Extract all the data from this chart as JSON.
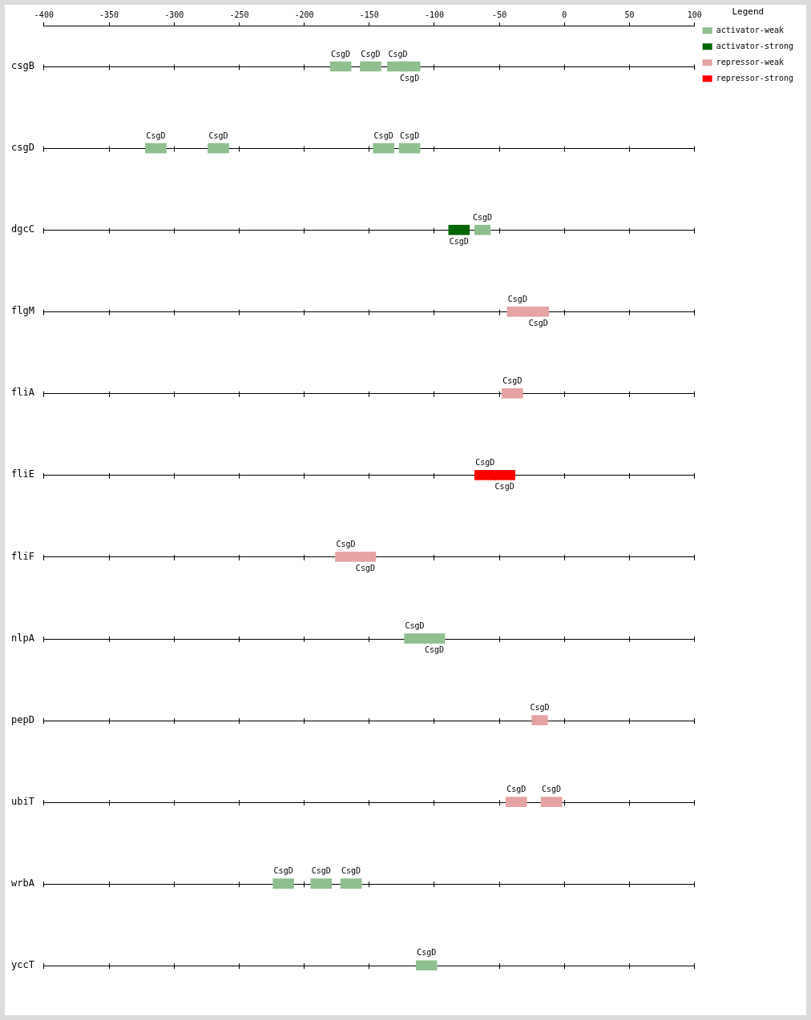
{
  "chart_data": {
    "type": "bar",
    "orientation": "horizontal",
    "grid": true,
    "legend": "top right",
    "legend_title": "Legend",
    "categories": [
      "csgB",
      "csgD",
      "dgcC",
      "flgM",
      "fliA",
      "fliE",
      "fliF",
      "nlpA",
      "pepD",
      "ubiT",
      "wrbA",
      "yccT"
    ],
    "xlim": [
      -400,
      100
    ],
    "xticks": [
      -400,
      -350,
      -300,
      -250,
      -200,
      -150,
      -100,
      -50,
      0,
      50,
      100
    ],
    "series": [
      {
        "name": "activator-weak",
        "color": "#8fbf8f",
        "base": [
          -180,
          -322,
          -69,
          null,
          null,
          null,
          null,
          -123,
          null,
          null,
          -224,
          -114
        ],
        "values": [
          16,
          16,
          12,
          null,
          null,
          null,
          null,
          16,
          null,
          null,
          16,
          16
        ]
      },
      {
        "color": "#8fbf8f",
        "base": [
          -157,
          -274,
          null,
          null,
          null,
          null,
          null,
          -108,
          null,
          null,
          -195,
          null
        ],
        "values": [
          16,
          16,
          null,
          null,
          null,
          null,
          null,
          16,
          null,
          null,
          16,
          null
        ]
      },
      {
        "color": "#8fbf8f",
        "base": [
          -136,
          -147,
          null,
          null,
          null,
          null,
          null,
          null,
          null,
          null,
          -172,
          null
        ],
        "values": [
          16,
          16,
          null,
          null,
          null,
          null,
          null,
          null,
          null,
          null,
          16,
          null
        ]
      },
      {
        "color": "#8fbf8f",
        "base": [
          -127,
          -127,
          null,
          null,
          null,
          null,
          null,
          null,
          null,
          null,
          null,
          null
        ],
        "values": [
          16,
          16,
          null,
          null,
          null,
          null,
          null,
          null,
          null,
          null,
          null,
          null
        ]
      },
      {
        "name": "activator-strong",
        "color": "#006400",
        "base": [
          null,
          null,
          -89,
          null,
          null,
          null,
          null,
          null,
          null,
          null,
          null,
          null
        ],
        "values": [
          null,
          null,
          16,
          null,
          null,
          null,
          null,
          null,
          null,
          null,
          null,
          null
        ]
      },
      {
        "name": "repressor-weak",
        "color": "#e5a3a3",
        "base": [
          null,
          null,
          null,
          -44,
          -48,
          null,
          -176,
          null,
          -25,
          -45,
          null,
          null
        ],
        "values": [
          null,
          null,
          null,
          16,
          16,
          null,
          16,
          null,
          12,
          16,
          null,
          null
        ]
      },
      {
        "color": "#e5a3a3",
        "base": [
          null,
          null,
          null,
          -28,
          null,
          null,
          -161,
          null,
          null,
          -18,
          null,
          null
        ],
        "values": [
          null,
          null,
          null,
          16,
          null,
          null,
          16,
          null,
          null,
          16,
          null,
          null
        ]
      },
      {
        "name": "repressor-strong",
        "color": "#ff0000",
        "base": [
          null,
          null,
          null,
          null,
          null,
          -69,
          null,
          null,
          null,
          null,
          null,
          null
        ],
        "values": [
          null,
          null,
          null,
          null,
          null,
          16,
          null,
          null,
          null,
          null,
          null,
          null
        ]
      },
      {
        "color": "#ff0000",
        "base": [
          null,
          null,
          null,
          null,
          null,
          -54,
          null,
          null,
          null,
          null,
          null,
          null
        ],
        "values": [
          null,
          null,
          null,
          null,
          null,
          16,
          null,
          null,
          null,
          null,
          null,
          null
        ]
      }
    ],
    "annotations": [
      "CsgD",
      "CsgD",
      "CsgD",
      "CsgD",
      "CsgD",
      "CsgD",
      "CsgD",
      "CsgD",
      "CsgD",
      "CsgD",
      "CsgD",
      "CsgD",
      "CsgD",
      "CsgD",
      "CsgD",
      "CsgD",
      "CsgD",
      "CsgD",
      "CsgD",
      "CsgD",
      "CsgD",
      "CsgD",
      "CsgD",
      "CsgD",
      "CsgD",
      "CsgD"
    ]
  }
}
